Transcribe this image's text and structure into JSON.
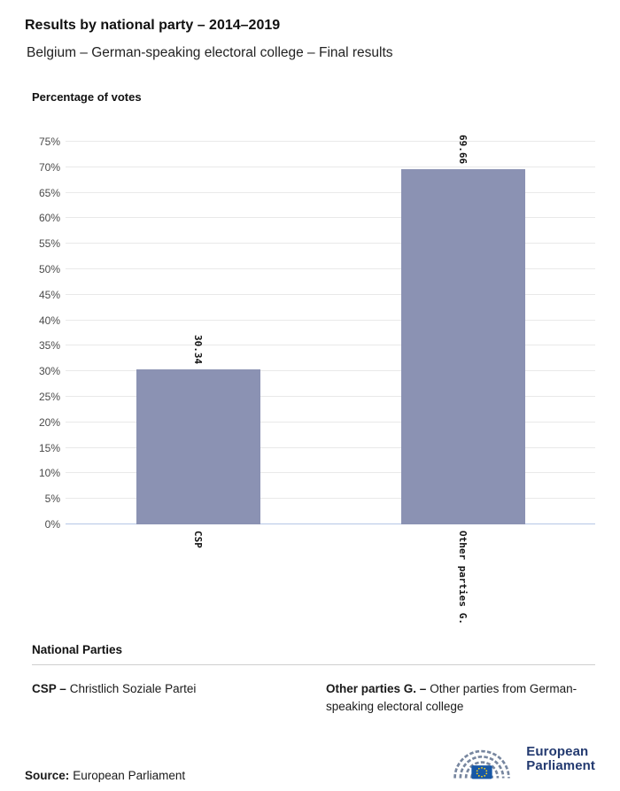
{
  "header": {
    "title": "Results by national party – 2014–2019",
    "subtitle": "Belgium – German-speaking electoral college – Final results"
  },
  "chart_data": {
    "type": "bar",
    "title": "Percentage of votes",
    "categories": [
      "CSP",
      "Other parties G."
    ],
    "values": [
      30.34,
      69.66
    ],
    "value_labels": [
      "30.34",
      "69.66"
    ],
    "xlabel": "",
    "ylabel": "Percentage of votes",
    "ylim": [
      0,
      75
    ],
    "ytick_step": 5,
    "ytick_suffix": "%",
    "grid": true,
    "legend_position": "none",
    "bar_color": "#8b92b3",
    "gridline_color": "#e9e9e9",
    "baseline_color": "#b5c7e6"
  },
  "legend": {
    "heading": "National Parties",
    "entries": [
      {
        "abbr": "CSP –",
        "full": "Christlich Soziale Partei"
      },
      {
        "abbr": "Other parties G. –",
        "full": "Other parties from German-speaking electoral college"
      }
    ]
  },
  "footer": {
    "source_label": "Source:",
    "source_value": "European Parliament",
    "logo_line1": "European",
    "logo_line2": "Parliament",
    "logo_navy": "#233a70",
    "logo_arc_color": "#77869f",
    "flag_blue": "#1757a6",
    "star_yellow": "#ffd617"
  }
}
